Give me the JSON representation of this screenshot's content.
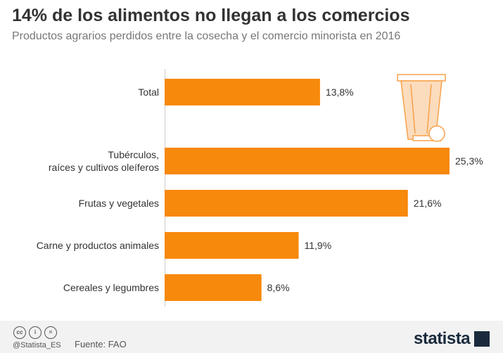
{
  "header": {
    "title": "14% de los alimentos no llegan a los comercios",
    "subtitle": "Productos agrarios perdidos entre la cosecha y el comercio minorista en 2016"
  },
  "chart_data": {
    "type": "bar",
    "orientation": "horizontal",
    "categories": [
      [
        "Total"
      ],
      [
        "Tubérculos,",
        "raíces y cultivos oleíferos"
      ],
      [
        "Frutas y vegetales"
      ],
      [
        "Carne y productos animales"
      ],
      [
        "Cereales y legumbres"
      ]
    ],
    "values": [
      13.8,
      25.3,
      21.6,
      11.9,
      8.6
    ],
    "value_labels": [
      "13,8%",
      "25,3%",
      "21,6%",
      "11,9%",
      "8,6%"
    ],
    "xlim": [
      0,
      25.3
    ],
    "grid": false,
    "bar_color": "#f7890c"
  },
  "footer": {
    "cc_icons": [
      "cc-icon",
      "by-icon",
      "nd-icon"
    ],
    "cc_glyphs": [
      "cc",
      "i",
      "="
    ],
    "handle": "@Statista_ES",
    "source": "Fuente: FAO",
    "brand": "statista"
  },
  "colors": {
    "accent": "#f7890c",
    "trash_fill": "#fbdcbd",
    "title": "#333333",
    "subtitle": "#777777"
  }
}
